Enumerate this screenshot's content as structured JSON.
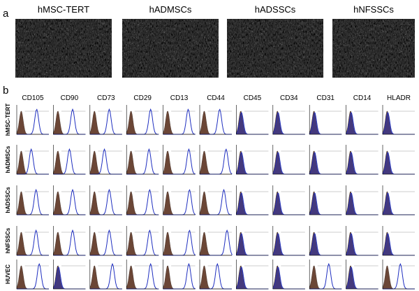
{
  "panel_a": {
    "label": "a",
    "images": [
      {
        "title": "hMSC-TERT"
      },
      {
        "title": "hADMSCs"
      },
      {
        "title": "hADSSCs"
      },
      {
        "title": "hNFSSCs"
      }
    ]
  },
  "panel_b": {
    "label": "b",
    "markers": [
      "CD105",
      "CD90",
      "CD73",
      "CD29",
      "CD13",
      "CD44",
      "CD45",
      "CD34",
      "CD31",
      "CD14",
      "HLADR"
    ],
    "rows": [
      "hMSC-TERT",
      "hADMSCs",
      "hADSSCs",
      "hNFSSCs",
      "HUVEC"
    ]
  }
}
